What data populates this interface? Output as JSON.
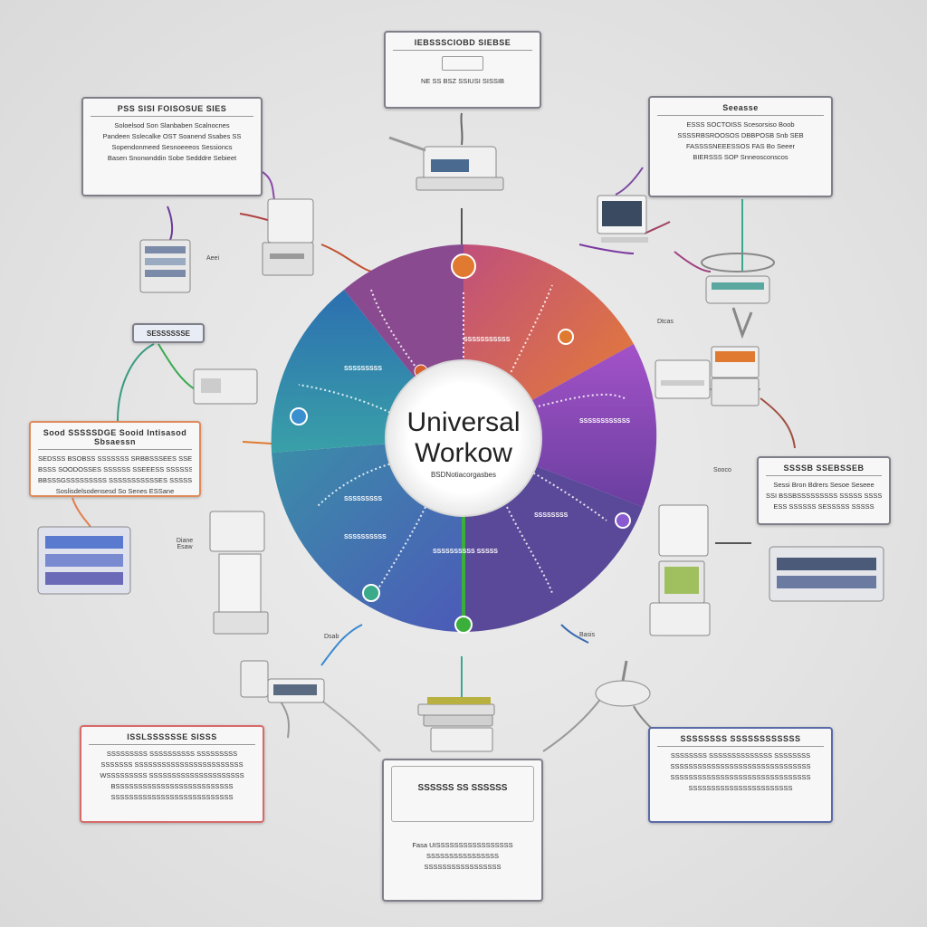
{
  "hub": {
    "title_line1": "Universal",
    "title_line2": "Workow",
    "subtitle": "BSDNotiacorgasbes"
  },
  "cards": {
    "top": {
      "title": "IEBSSSCIOBD SIEBSE",
      "lines": [
        "NE SS BSZ SSIUSI SISSIB"
      ]
    },
    "top_left": {
      "title": "PSS SISI FOISOSUE SIES",
      "lines": [
        "Soloelsod Son Slanbaben Scalnocnes",
        "Pandeen Sslecalke OST Soanend Ssabes SS",
        "Sopendonmeed Sesnoeeeos Sessioncs",
        "Basen Snonwnddin Sobe Sedddre Sebieet"
      ]
    },
    "top_right": {
      "title": "Seeasse",
      "lines": [
        "ESSS SOCTOISS Scesorsiso Boob",
        "SSSSRBSROOSOS DBBPOSB Snb SEB",
        "FASSSSNEEESSOS FAS Bo Seeer",
        "BIERSSS SOP Snneosconscos"
      ]
    },
    "left_chip": {
      "title": "SESSSSSSE"
    },
    "left": {
      "title": "Sood SSSSSDGE Sooid Intisasod Sbsaessn",
      "lines": [
        "SEDSSS BSOBSS SSSSSSS SRBBSSSEES SSESSS",
        "BSSS SOODOSSES SSSSSS SSEEESS SSSSSS",
        "BBSSSGSSSSSSSSS SSSSSSSSSSSES SSSSS",
        "Soslisdelsodensesd So Senes ESSane"
      ]
    },
    "right": {
      "title": "SSSSB SSEBSSEB",
      "lines": [
        "Sessi Bron Bdrers Sesoe Seseee",
        "SSI BSSBSSSSSSSSS SSSSS SSSS",
        "ESS SSSSSS SESSSSS SSSSS"
      ]
    },
    "bottom_left": {
      "title": "ISSLSSSSSSE SISSS",
      "lines": [
        "SSSSSSSSS SSSSSSSSSS SSSSSSSSS",
        "SSSSSSS SSSSSSSSSSSSSSSSSSSSSSSS",
        "WSSSSSSSSS SSSSSSSSSSSSSSSSSSSSS",
        "BSSSSSSSSSSSSSSSSSSSSSSSSSS",
        "SSSSSSSSSSSSSSSSSSSSSSSSSSS"
      ]
    },
    "bottom": {
      "title": "SSSSSS SS SSSSSS",
      "lines": [
        "Fasa UISSSSSSSSSSSSSSSSS",
        "SSSSSSSSSSSSSSSS",
        "SSSSSSSSSSSSSSSSS"
      ]
    },
    "bottom_right": {
      "title": "SSSSSSSS SSSSSSSSSSSS",
      "lines": [
        "SSSSSSSS SSSSSSSSSSSSSS SSSSSSSS",
        "SSSSSSSSSSSSSSSSSSSSSSSSSSSSSSS",
        "SSSSSSSSSSSSSSSSSSSSSSSSSSSSSSS",
        "SSSSSSSSSSSSSSSSSSSSSSS"
      ]
    }
  },
  "tags": [
    "Aeei",
    "Dtcas",
    "Basis",
    "Dsab",
    "Diane Esaw",
    "Sooco"
  ],
  "spoke_labels": [
    "SSSSSSSSS",
    "SSSSSSSSSSS",
    "SSSSSSSSSSSS",
    "SSSSSSSSS",
    "SSSSSSSS",
    "SSSSSSSSSS",
    "SSSSSSSSSS SSSSS"
  ],
  "colors": {
    "wheel_teal": "#3b8fb0",
    "wheel_purple": "#9b55b8",
    "wheel_orange": "#e07a30",
    "wheel_blue": "#4a5aa8",
    "accent_green": "#3cae3c"
  }
}
